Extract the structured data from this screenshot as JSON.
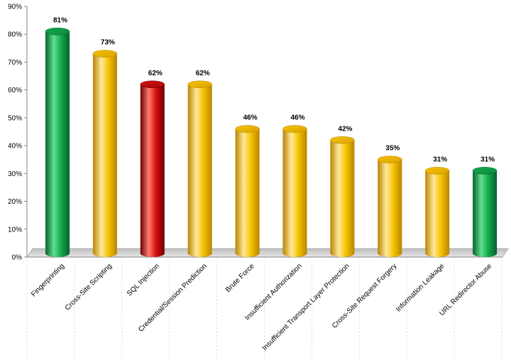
{
  "chart_data": {
    "type": "bar",
    "style": "3d-cylinder",
    "categories": [
      "Fingerprinting",
      "Cross-Site Scripting",
      "SQL Injection",
      "Credential/Session Prediction",
      "Brute Force",
      "Insufficient Authorization",
      "Insufficient Transport Layer Protection",
      "Cross-Site Request Forgery",
      "Information Leakage",
      "URL Redirector Abuse"
    ],
    "values": [
      81,
      73,
      62,
      62,
      46,
      46,
      42,
      35,
      31,
      31
    ],
    "data_labels": [
      "81%",
      "73%",
      "62%",
      "62%",
      "46%",
      "46%",
      "42%",
      "35%",
      "31%",
      "31%"
    ],
    "bar_colors": [
      "green",
      "yellow",
      "red",
      "yellow",
      "yellow",
      "yellow",
      "yellow",
      "yellow",
      "yellow",
      "green"
    ],
    "palette": {
      "green": {
        "light": "#5fe08f",
        "mid": "#12a94a",
        "dark": "#05602a",
        "top": "#0c8a3c"
      },
      "yellow": {
        "light": "#ffe99a",
        "mid": "#f6c200",
        "dark": "#b98400",
        "top": "#d9a300"
      },
      "red": {
        "light": "#ff7b6e",
        "mid": "#d40f0f",
        "dark": "#6e0000",
        "top": "#a30a0a"
      }
    },
    "ylim": [
      0,
      90
    ],
    "yticks": [
      0,
      10,
      20,
      30,
      40,
      50,
      60,
      70,
      80,
      90
    ],
    "ytick_labels": [
      "0%",
      "10%",
      "20%",
      "30%",
      "40%",
      "50%",
      "60%",
      "70%",
      "80%",
      "90%"
    ],
    "grid": false,
    "legend": "none",
    "title": "",
    "xlabel": "",
    "ylabel": ""
  }
}
